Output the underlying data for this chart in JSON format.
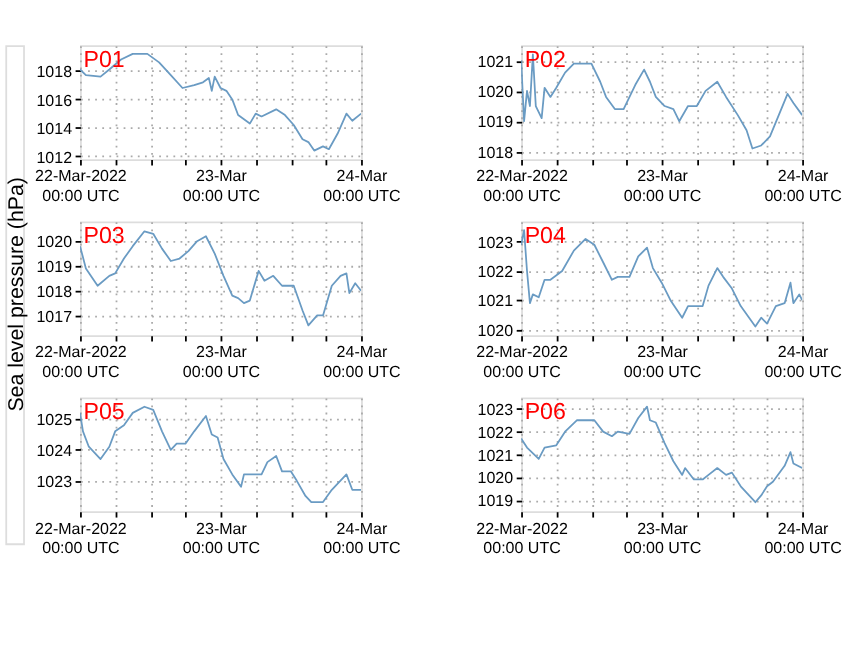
{
  "chart_data": [
    {
      "type": "line",
      "title": "P01",
      "ylabel": "Sea level pressure (hPa)",
      "grid": true,
      "xlim": [
        "2022-03-22T00:00",
        "2022-03-24T00:00"
      ],
      "ylim": [
        1011.8,
        1019.8
      ],
      "yticks": [
        1012,
        1014,
        1016,
        1018
      ],
      "xticks": [
        {
          "value": "2022-03-22T00:00",
          "label": "22-Mar-2022\n00:00 UTC"
        },
        {
          "value": "2022-03-22T06:00",
          "label": null
        },
        {
          "value": "2022-03-22T12:00",
          "label": null
        },
        {
          "value": "2022-03-22T18:00",
          "label": null
        },
        {
          "value": "2022-03-23T00:00",
          "label": "23-Mar\n00:00 UTC"
        },
        {
          "value": "2022-03-23T06:00",
          "label": null
        },
        {
          "value": "2022-03-23T12:00",
          "label": null
        },
        {
          "value": "2022-03-23T18:00",
          "label": null
        },
        {
          "value": "2022-03-24T00:00",
          "label": "24-Mar\n00:00 UTC"
        }
      ],
      "x": [
        "2022-03-22T00:00",
        "2022-03-22T01:00",
        "2022-03-22T03:30",
        "2022-03-22T05:00",
        "2022-03-22T07:00",
        "2022-03-22T09:00",
        "2022-03-22T11:30",
        "2022-03-22T13:30",
        "2022-03-22T15:30",
        "2022-03-22T17:30",
        "2022-03-22T19:30",
        "2022-03-22T21:00",
        "2022-03-22T22:00",
        "2022-03-22T22:30",
        "2022-03-22T23:00",
        "2022-03-23T00:00",
        "2022-03-23T01:00",
        "2022-03-23T02:00",
        "2022-03-23T03:00",
        "2022-03-23T05:00",
        "2022-03-23T06:00",
        "2022-03-23T07:00",
        "2022-03-23T09:30",
        "2022-03-23T11:00",
        "2022-03-23T12:30",
        "2022-03-23T14:00",
        "2022-03-23T15:00",
        "2022-03-23T16:00",
        "2022-03-23T17:30",
        "2022-03-23T18:30",
        "2022-03-23T20:00",
        "2022-03-23T21:30",
        "2022-03-23T22:30",
        "2022-03-24T00:00"
      ],
      "series": [
        {
          "color": "#6a9bc3",
          "values": [
            1018.1,
            1017.7,
            1017.6,
            1018.1,
            1018.8,
            1019.2,
            1019.2,
            1018.6,
            1017.7,
            1016.8,
            1017.0,
            1017.2,
            1017.5,
            1016.6,
            1017.6,
            1016.8,
            1016.6,
            1016.0,
            1014.9,
            1014.3,
            1015.0,
            1014.8,
            1015.3,
            1014.9,
            1014.2,
            1013.2,
            1013.0,
            1012.4,
            1012.7,
            1012.5,
            1013.6,
            1015.0,
            1014.5,
            1015.0
          ]
        }
      ]
    },
    {
      "type": "line",
      "title": "P02",
      "grid": true,
      "xlim": [
        "2022-03-22T00:00",
        "2022-03-24T00:00"
      ],
      "ylim": [
        1017.75,
        1021.5
      ],
      "yticks": [
        1018,
        1019,
        1020,
        1021
      ],
      "xticks": [
        {
          "value": "2022-03-22T00:00",
          "label": "22-Mar-2022\n00:00 UTC"
        },
        {
          "value": "2022-03-22T06:00",
          "label": null
        },
        {
          "value": "2022-03-22T12:00",
          "label": null
        },
        {
          "value": "2022-03-22T18:00",
          "label": null
        },
        {
          "value": "2022-03-23T00:00",
          "label": "23-Mar\n00:00 UTC"
        },
        {
          "value": "2022-03-23T06:00",
          "label": null
        },
        {
          "value": "2022-03-23T12:00",
          "label": null
        },
        {
          "value": "2022-03-23T18:00",
          "label": null
        },
        {
          "value": "2022-03-24T00:00",
          "label": "24-Mar\n00:00 UTC"
        }
      ],
      "x": [
        "2022-03-22T00:00",
        "2022-03-22T00:30",
        "2022-03-22T01:00",
        "2022-03-22T01:30",
        "2022-03-22T02:00",
        "2022-03-22T02:30",
        "2022-03-22T03:30",
        "2022-03-22T04:00",
        "2022-03-22T05:00",
        "2022-03-22T06:00",
        "2022-03-22T07:30",
        "2022-03-22T09:00",
        "2022-03-22T10:30",
        "2022-03-22T12:00",
        "2022-03-22T13:30",
        "2022-03-22T14:30",
        "2022-03-22T16:00",
        "2022-03-22T17:30",
        "2022-03-22T19:30",
        "2022-03-22T21:00",
        "2022-03-22T22:00",
        "2022-03-22T23:00",
        "2022-03-23T00:30",
        "2022-03-23T02:00",
        "2022-03-23T03:00",
        "2022-03-23T04:30",
        "2022-03-23T06:00",
        "2022-03-23T07:30",
        "2022-03-23T09:30",
        "2022-03-23T11:00",
        "2022-03-23T13:00",
        "2022-03-23T14:30",
        "2022-03-23T15:30",
        "2022-03-23T17:00",
        "2022-03-23T18:30",
        "2022-03-23T20:00",
        "2022-03-23T21:30",
        "2022-03-23T22:30",
        "2022-03-24T00:00"
      ],
      "series": [
        {
          "color": "#6a9bc3",
          "values": [
            1021.0,
            1019.0,
            1020.0,
            1019.5,
            1021.2,
            1019.5,
            1019.1,
            1020.1,
            1019.8,
            1020.1,
            1020.6,
            1020.9,
            1020.9,
            1020.9,
            1020.3,
            1019.8,
            1019.4,
            1019.4,
            1020.2,
            1020.7,
            1020.3,
            1019.8,
            1019.5,
            1019.4,
            1019.0,
            1019.5,
            1019.5,
            1020.0,
            1020.3,
            1019.8,
            1019.2,
            1018.7,
            1018.1,
            1018.2,
            1018.5,
            1019.2,
            1019.9,
            1019.6,
            1019.2
          ]
        }
      ]
    },
    {
      "type": "line",
      "title": "P03",
      "grid": true,
      "xlim": [
        "2022-03-22T00:00",
        "2022-03-24T00:00"
      ],
      "ylim": [
        1016.2,
        1020.8
      ],
      "yticks": [
        1017,
        1018,
        1019,
        1020
      ],
      "xticks": [
        {
          "value": "2022-03-22T00:00",
          "label": "22-Mar-2022\n00:00 UTC"
        },
        {
          "value": "2022-03-22T06:00",
          "label": null
        },
        {
          "value": "2022-03-22T12:00",
          "label": null
        },
        {
          "value": "2022-03-22T18:00",
          "label": null
        },
        {
          "value": "2022-03-23T00:00",
          "label": "23-Mar\n00:00 UTC"
        },
        {
          "value": "2022-03-23T06:00",
          "label": null
        },
        {
          "value": "2022-03-23T12:00",
          "label": null
        },
        {
          "value": "2022-03-23T18:00",
          "label": null
        },
        {
          "value": "2022-03-24T00:00",
          "label": "24-Mar\n00:00 UTC"
        }
      ],
      "x": [
        "2022-03-22T00:00",
        "2022-03-22T01:00",
        "2022-03-22T03:00",
        "2022-03-22T05:00",
        "2022-03-22T06:00",
        "2022-03-22T07:30",
        "2022-03-22T09:00",
        "2022-03-22T11:00",
        "2022-03-22T12:30",
        "2022-03-22T14:00",
        "2022-03-22T15:30",
        "2022-03-22T17:00",
        "2022-03-22T18:30",
        "2022-03-22T20:00",
        "2022-03-22T21:30",
        "2022-03-22T23:00",
        "2022-03-23T00:30",
        "2022-03-23T02:00",
        "2022-03-23T03:00",
        "2022-03-23T04:00",
        "2022-03-23T05:00",
        "2022-03-23T06:30",
        "2022-03-23T07:30",
        "2022-03-23T09:00",
        "2022-03-23T10:30",
        "2022-03-23T12:30",
        "2022-03-23T14:00",
        "2022-03-23T15:00",
        "2022-03-23T16:30",
        "2022-03-23T17:30",
        "2022-03-23T19:00",
        "2022-03-23T20:30",
        "2022-03-23T21:30",
        "2022-03-23T22:00",
        "2022-03-23T23:00",
        "2022-03-24T00:00"
      ],
      "series": [
        {
          "color": "#6a9bc3",
          "values": [
            1019.8,
            1018.9,
            1018.2,
            1018.6,
            1018.7,
            1019.3,
            1019.8,
            1020.4,
            1020.3,
            1019.7,
            1019.2,
            1019.3,
            1019.6,
            1020.0,
            1020.2,
            1019.5,
            1018.6,
            1017.8,
            1017.7,
            1017.5,
            1017.6,
            1018.8,
            1018.4,
            1018.6,
            1018.2,
            1018.2,
            1017.2,
            1016.6,
            1017.0,
            1017.0,
            1018.2,
            1018.6,
            1018.7,
            1017.9,
            1018.3,
            1018.0
          ]
        }
      ]
    },
    {
      "type": "line",
      "title": "P04",
      "grid": true,
      "xlim": [
        "2022-03-22T00:00",
        "2022-03-24T00:00"
      ],
      "ylim": [
        1019.8,
        1023.7
      ],
      "yticks": [
        1020,
        1021,
        1022,
        1023
      ],
      "xticks": [
        {
          "value": "2022-03-22T00:00",
          "label": "22-Mar-2022\n00:00 UTC"
        },
        {
          "value": "2022-03-22T06:00",
          "label": null
        },
        {
          "value": "2022-03-22T12:00",
          "label": null
        },
        {
          "value": "2022-03-22T18:00",
          "label": null
        },
        {
          "value": "2022-03-23T00:00",
          "label": "23-Mar\n00:00 UTC"
        },
        {
          "value": "2022-03-23T06:00",
          "label": null
        },
        {
          "value": "2022-03-23T12:00",
          "label": null
        },
        {
          "value": "2022-03-23T18:00",
          "label": null
        },
        {
          "value": "2022-03-24T00:00",
          "label": "24-Mar\n00:00 UTC"
        }
      ],
      "x": [
        "2022-03-22T00:00",
        "2022-03-22T00:30",
        "2022-03-22T01:00",
        "2022-03-22T01:30",
        "2022-03-22T02:00",
        "2022-03-22T03:00",
        "2022-03-22T04:00",
        "2022-03-22T05:00",
        "2022-03-22T07:00",
        "2022-03-22T09:00",
        "2022-03-22T11:00",
        "2022-03-22T12:30",
        "2022-03-22T14:00",
        "2022-03-22T15:30",
        "2022-03-22T16:30",
        "2022-03-22T18:30",
        "2022-03-22T20:00",
        "2022-03-22T21:30",
        "2022-03-22T22:30",
        "2022-03-23T00:00",
        "2022-03-23T01:30",
        "2022-03-23T03:30",
        "2022-03-23T04:30",
        "2022-03-23T06:00",
        "2022-03-23T07:00",
        "2022-03-23T08:00",
        "2022-03-23T09:30",
        "2022-03-23T10:30",
        "2022-03-23T12:00",
        "2022-03-23T13:30",
        "2022-03-23T16:00",
        "2022-03-23T17:00",
        "2022-03-23T18:00",
        "2022-03-23T19:30",
        "2022-03-23T21:00",
        "2022-03-23T22:00",
        "2022-03-23T22:30",
        "2022-03-23T23:30",
        "2022-03-24T00:00"
      ],
      "series": [
        {
          "color": "#6a9bc3",
          "values": [
            1022.9,
            1023.4,
            1022.0,
            1020.9,
            1021.2,
            1021.1,
            1021.7,
            1021.7,
            1022.0,
            1022.7,
            1023.1,
            1022.9,
            1022.3,
            1021.7,
            1021.8,
            1021.8,
            1022.5,
            1022.8,
            1022.1,
            1021.6,
            1021.0,
            1020.4,
            1020.8,
            1020.8,
            1020.8,
            1021.5,
            1022.1,
            1021.8,
            1021.4,
            1020.8,
            1020.1,
            1020.4,
            1020.2,
            1020.8,
            1020.9,
            1021.6,
            1020.9,
            1021.2,
            1021.0
          ]
        }
      ]
    },
    {
      "type": "line",
      "title": "P05",
      "grid": true,
      "xlim": [
        "2022-03-22T00:00",
        "2022-03-24T00:00"
      ],
      "ylim": [
        1022.0,
        1025.7
      ],
      "yticks": [
        1023,
        1024,
        1025
      ],
      "xticks": [
        {
          "value": "2022-03-22T00:00",
          "label": "22-Mar-2022\n00:00 UTC"
        },
        {
          "value": "2022-03-22T06:00",
          "label": null
        },
        {
          "value": "2022-03-22T12:00",
          "label": null
        },
        {
          "value": "2022-03-22T18:00",
          "label": null
        },
        {
          "value": "2022-03-23T00:00",
          "label": "23-Mar\n00:00 UTC"
        },
        {
          "value": "2022-03-23T06:00",
          "label": null
        },
        {
          "value": "2022-03-23T12:00",
          "label": null
        },
        {
          "value": "2022-03-23T18:00",
          "label": null
        },
        {
          "value": "2022-03-24T00:00",
          "label": "24-Mar\n00:00 UTC"
        }
      ],
      "x": [
        "2022-03-22T00:00",
        "2022-03-22T00:30",
        "2022-03-22T01:30",
        "2022-03-22T03:30",
        "2022-03-22T05:00",
        "2022-03-22T06:00",
        "2022-03-22T07:30",
        "2022-03-22T09:00",
        "2022-03-22T11:00",
        "2022-03-22T12:30",
        "2022-03-22T14:00",
        "2022-03-22T15:30",
        "2022-03-22T16:30",
        "2022-03-22T18:00",
        "2022-03-22T19:30",
        "2022-03-22T21:30",
        "2022-03-22T22:30",
        "2022-03-22T23:30",
        "2022-03-23T00:30",
        "2022-03-23T02:00",
        "2022-03-23T03:30",
        "2022-03-23T04:00",
        "2022-03-23T06:00",
        "2022-03-23T07:00",
        "2022-03-23T08:00",
        "2022-03-23T09:30",
        "2022-03-23T10:30",
        "2022-03-23T12:00",
        "2022-03-23T13:00",
        "2022-03-23T14:30",
        "2022-03-23T15:30",
        "2022-03-23T17:30",
        "2022-03-23T19:00",
        "2022-03-23T20:00",
        "2022-03-23T21:30",
        "2022-03-23T22:30",
        "2022-03-24T00:00"
      ],
      "series": [
        {
          "color": "#6a9bc3",
          "values": [
            1025.2,
            1024.6,
            1024.1,
            1023.7,
            1024.1,
            1024.6,
            1024.8,
            1025.2,
            1025.4,
            1025.3,
            1024.6,
            1024.0,
            1024.2,
            1024.2,
            1024.6,
            1025.1,
            1024.5,
            1024.4,
            1023.7,
            1023.2,
            1022.8,
            1023.2,
            1023.2,
            1023.2,
            1023.6,
            1023.8,
            1023.3,
            1023.3,
            1023.0,
            1022.5,
            1022.3,
            1022.3,
            1022.7,
            1022.9,
            1023.2,
            1022.7,
            1022.7
          ]
        }
      ]
    },
    {
      "type": "line",
      "title": "P06",
      "grid": true,
      "xlim": [
        "2022-03-22T00:00",
        "2022-03-24T00:00"
      ],
      "ylim": [
        1018.5,
        1023.5
      ],
      "yticks": [
        1019,
        1020,
        1021,
        1022,
        1023
      ],
      "xticks": [
        {
          "value": "2022-03-22T00:00",
          "label": "22-Mar-2022\n00:00 UTC"
        },
        {
          "value": "2022-03-22T06:00",
          "label": null
        },
        {
          "value": "2022-03-22T12:00",
          "label": null
        },
        {
          "value": "2022-03-22T18:00",
          "label": null
        },
        {
          "value": "2022-03-23T00:00",
          "label": "23-Mar\n00:00 UTC"
        },
        {
          "value": "2022-03-23T06:00",
          "label": null
        },
        {
          "value": "2022-03-23T12:00",
          "label": null
        },
        {
          "value": "2022-03-23T18:00",
          "label": null
        },
        {
          "value": "2022-03-24T00:00",
          "label": "24-Mar\n00:00 UTC"
        }
      ],
      "x": [
        "2022-03-22T00:00",
        "2022-03-22T01:00",
        "2022-03-22T03:00",
        "2022-03-22T04:00",
        "2022-03-22T06:00",
        "2022-03-22T07:30",
        "2022-03-22T09:30",
        "2022-03-22T11:00",
        "2022-03-22T12:30",
        "2022-03-22T14:00",
        "2022-03-22T15:30",
        "2022-03-22T16:30",
        "2022-03-22T18:30",
        "2022-03-22T20:00",
        "2022-03-22T21:30",
        "2022-03-22T22:00",
        "2022-03-22T23:00",
        "2022-03-23T00:30",
        "2022-03-23T02:00",
        "2022-03-23T03:30",
        "2022-03-23T04:00",
        "2022-03-23T05:30",
        "2022-03-23T07:00",
        "2022-03-23T08:00",
        "2022-03-23T09:30",
        "2022-03-23T11:00",
        "2022-03-23T12:00",
        "2022-03-23T13:30",
        "2022-03-23T16:00",
        "2022-03-23T17:00",
        "2022-03-23T18:00",
        "2022-03-23T19:00",
        "2022-03-23T21:00",
        "2022-03-23T22:00",
        "2022-03-23T22:30",
        "2022-03-24T00:00"
      ],
      "series": [
        {
          "color": "#6a9bc3",
          "values": [
            1021.7,
            1021.3,
            1020.8,
            1021.3,
            1021.4,
            1022.0,
            1022.5,
            1022.5,
            1022.5,
            1022.0,
            1021.8,
            1022.0,
            1021.9,
            1022.6,
            1023.1,
            1022.5,
            1022.4,
            1021.5,
            1020.7,
            1020.1,
            1020.4,
            1019.9,
            1019.9,
            1020.1,
            1020.4,
            1020.1,
            1020.2,
            1019.6,
            1018.9,
            1019.2,
            1019.6,
            1019.8,
            1020.5,
            1021.1,
            1020.6,
            1020.4
          ]
        }
      ]
    }
  ]
}
